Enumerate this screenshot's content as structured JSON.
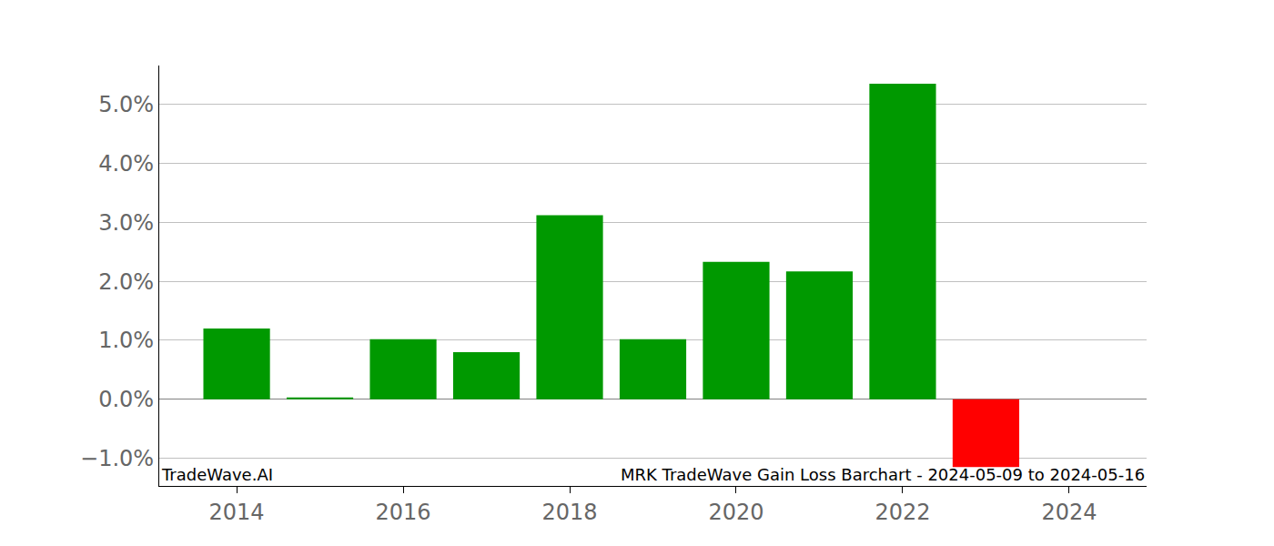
{
  "chart_data": {
    "type": "bar",
    "x": [
      2014,
      2015,
      2016,
      2017,
      2018,
      2019,
      2020,
      2021,
      2022,
      2023
    ],
    "values": [
      1.2,
      0.03,
      1.02,
      0.8,
      3.12,
      1.02,
      2.33,
      2.17,
      5.35,
      -1.15
    ],
    "colors": [
      "#009900",
      "#009900",
      "#009900",
      "#009900",
      "#009900",
      "#009900",
      "#009900",
      "#009900",
      "#009900",
      "#ff0000"
    ],
    "xlim": [
      2013.07,
      2024.93
    ],
    "xticks": [
      2014,
      2016,
      2018,
      2020,
      2022,
      2024
    ],
    "ylim": [
      -1.47,
      5.66
    ],
    "yticks": [
      {
        "value": -1,
        "label": "−1.0%"
      },
      {
        "value": 0,
        "label": "0.0%"
      },
      {
        "value": 1,
        "label": "1.0%"
      },
      {
        "value": 2,
        "label": "2.0%"
      },
      {
        "value": 3,
        "label": "3.0%"
      },
      {
        "value": 4,
        "label": "4.0%"
      },
      {
        "value": 5,
        "label": "5.0%"
      }
    ],
    "grid": true,
    "annotations": [
      "TradeWave.AI",
      "MRK TradeWave Gain Loss Barchart - 2024-05-09 to 2024-05-16"
    ]
  }
}
